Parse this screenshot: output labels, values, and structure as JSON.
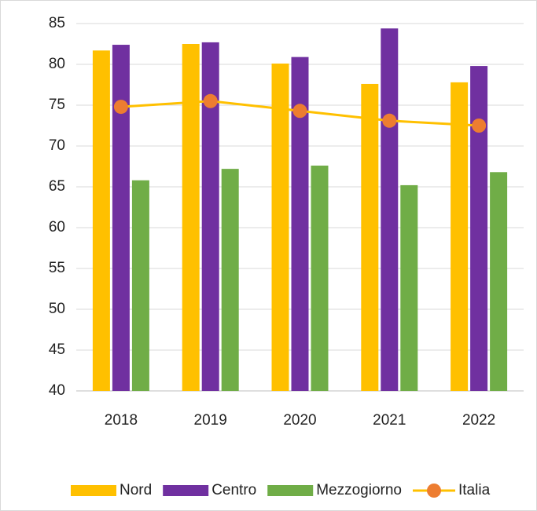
{
  "chart_data": {
    "type": "bar",
    "categories": [
      "2018",
      "2019",
      "2020",
      "2021",
      "2022"
    ],
    "series": [
      {
        "name": "Nord",
        "color": "#FFC000",
        "values": [
          81.7,
          82.5,
          80.1,
          77.6,
          77.8
        ]
      },
      {
        "name": "Centro",
        "color": "#7030A0",
        "values": [
          82.4,
          82.7,
          80.9,
          84.4,
          79.8
        ]
      },
      {
        "name": "Mezzogiorno",
        "color": "#70AD47",
        "values": [
          65.8,
          67.2,
          67.6,
          65.2,
          66.8
        ]
      },
      {
        "name": "Italia",
        "type": "line",
        "color": "#FFC000",
        "marker_color": "#ED7D31",
        "values": [
          74.8,
          75.5,
          74.3,
          73.1,
          72.5
        ]
      }
    ],
    "ylim": [
      40,
      85
    ],
    "yticks": [
      40,
      45,
      50,
      55,
      60,
      65,
      70,
      75,
      80,
      85
    ],
    "grid": true,
    "legend": "bottom"
  }
}
